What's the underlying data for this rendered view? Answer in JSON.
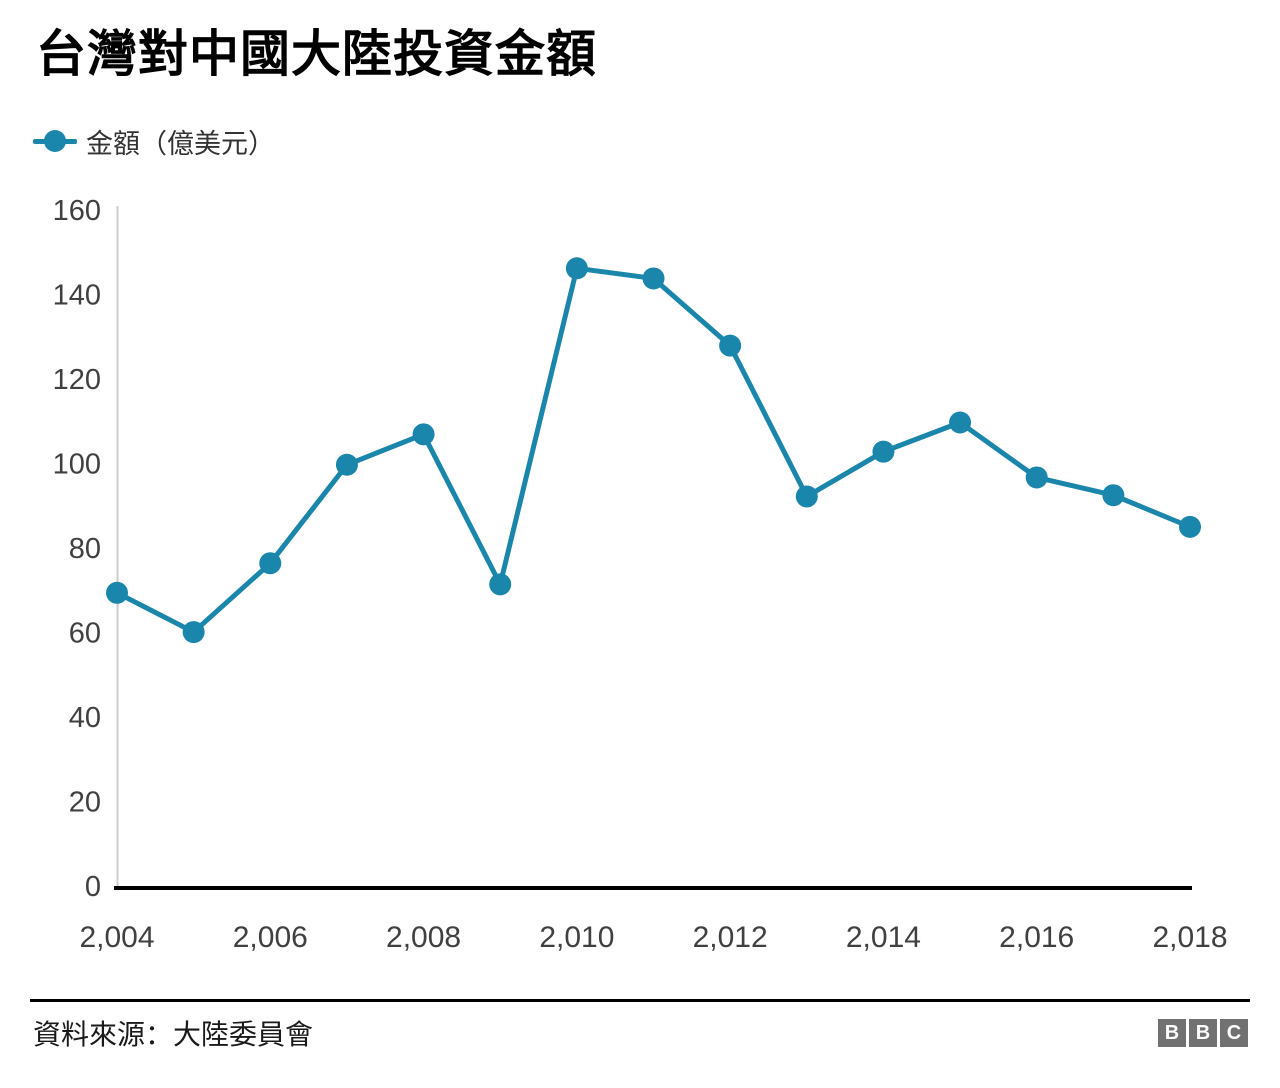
{
  "header": {
    "title": "台灣對中國大陸投資金額"
  },
  "legend": {
    "label": "金額（億美元）"
  },
  "chart_data": {
    "type": "line",
    "title": "台灣對中國大陸投資金額",
    "x": [
      2004,
      2005,
      2006,
      2007,
      2008,
      2009,
      2010,
      2011,
      2012,
      2013,
      2014,
      2015,
      2016,
      2017,
      2018
    ],
    "series": [
      {
        "name": "金額（億美元）",
        "values": [
          69.4,
          60.1,
          76.4,
          99.7,
          106.9,
          71.4,
          146.2,
          143.8,
          127.9,
          92.2,
          102.8,
          109.7,
          96.7,
          92.5,
          85.0
        ]
      }
    ],
    "xlabel": "",
    "ylabel": "",
    "ylim": [
      0,
      160
    ],
    "y_ticks": [
      0,
      20,
      40,
      60,
      80,
      100,
      120,
      140,
      160
    ],
    "x_ticks": [
      {
        "year": 2004,
        "label": "2,004"
      },
      {
        "year": 2006,
        "label": "2,006"
      },
      {
        "year": 2008,
        "label": "2,008"
      },
      {
        "year": 2010,
        "label": "2,010"
      },
      {
        "year": 2012,
        "label": "2,012"
      },
      {
        "year": 2014,
        "label": "2,014"
      },
      {
        "year": 2016,
        "label": "2,016"
      },
      {
        "year": 2018,
        "label": "2,018"
      },
      {
        "year": 2018,
        "label": ""
      }
    ],
    "grid": false,
    "legend_position": "top-left",
    "marker": "circle"
  },
  "footer": {
    "source": "資料來源：大陸委員會",
    "bbc_logo": {
      "letters": [
        "B",
        "B",
        "C"
      ]
    }
  },
  "colors": {
    "line": "#1a86ab",
    "axis_text": "#404040",
    "y_axis_line": "#cccccc",
    "x_axis_line": "#000000",
    "bbc_square": "#717171",
    "bbc_letter": "#ffffff"
  }
}
